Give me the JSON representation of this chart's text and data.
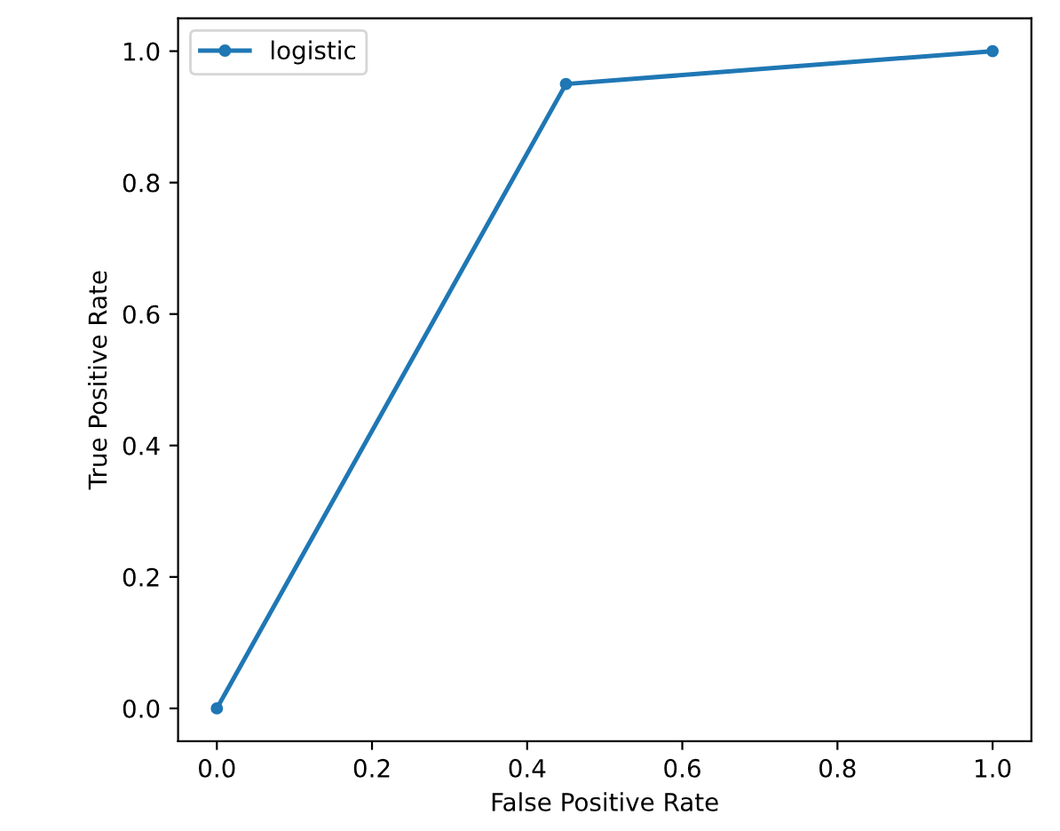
{
  "chart_data": {
    "type": "line",
    "xlabel": "False Positive Rate",
    "ylabel": "True Positive Rate",
    "x": [
      0,
      0.45,
      1
    ],
    "series": [
      {
        "name": "logistic",
        "color": "#1f77b4",
        "values": [
          0,
          0.95,
          1
        ]
      }
    ],
    "xlim": [
      -0.05,
      1.05
    ],
    "ylim": [
      -0.05,
      1.05
    ],
    "xticks": [
      {
        "value": 0,
        "label": "0.0"
      },
      {
        "value": 0.2,
        "label": "0.2"
      },
      {
        "value": 0.4,
        "label": "0.4"
      },
      {
        "value": 0.6,
        "label": "0.6"
      },
      {
        "value": 0.8,
        "label": "0.8"
      },
      {
        "value": 1,
        "label": "1.0"
      }
    ],
    "yticks": [
      {
        "value": 0,
        "label": "0.0"
      },
      {
        "value": 0.2,
        "label": "0.2"
      },
      {
        "value": 0.4,
        "label": "0.4"
      },
      {
        "value": 0.6,
        "label": "0.6"
      },
      {
        "value": 0.8,
        "label": "0.8"
      },
      {
        "value": 1,
        "label": "1.0"
      }
    ],
    "grid": false,
    "legend": "top left",
    "marker": "circle",
    "line_style": "solid"
  }
}
